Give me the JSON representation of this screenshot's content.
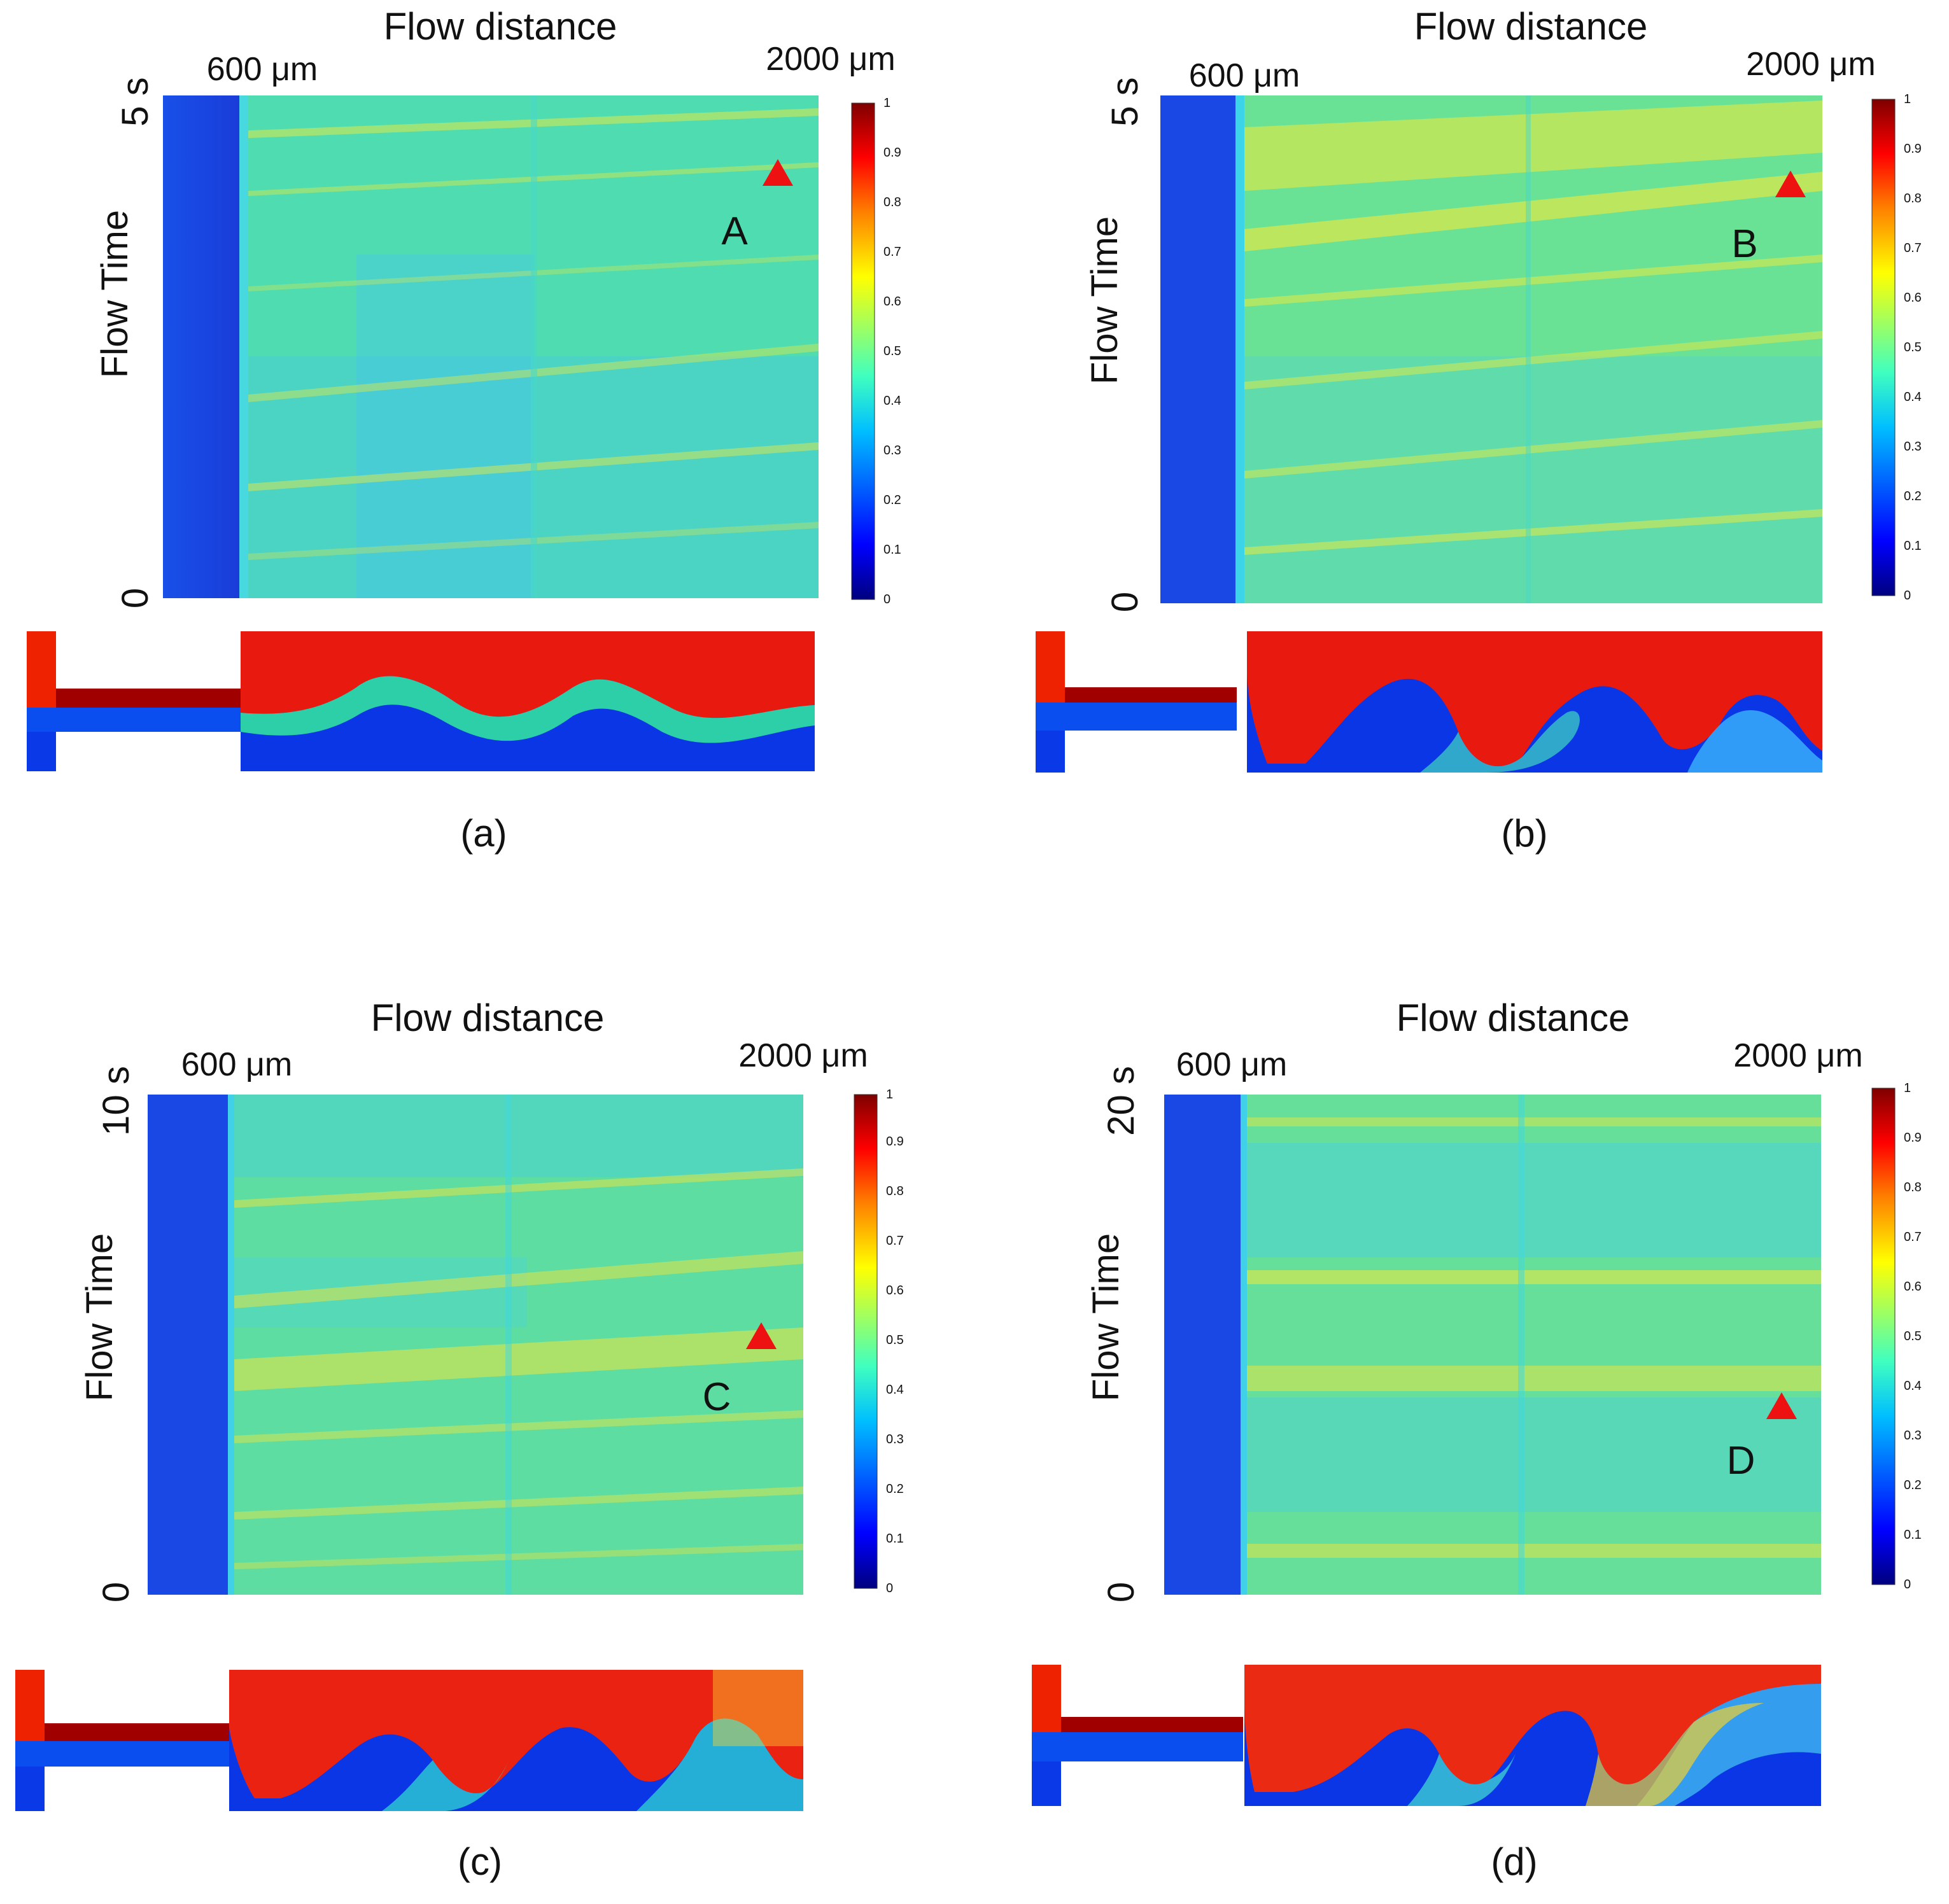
{
  "figure": {
    "colorbar": {
      "ticks": [
        "0",
        "0.1",
        "0.2",
        "0.3",
        "0.4",
        "0.5",
        "0.6",
        "0.7",
        "0.8",
        "0.9",
        "1"
      ],
      "colors": [
        "#00007f",
        "#0000ff",
        "#0080ff",
        "#00ffff",
        "#80ff80",
        "#ffff00",
        "#ff8000",
        "#ff0000",
        "#7f0000"
      ]
    },
    "panels": [
      {
        "id": "a",
        "title": "Flow distance",
        "pos_start": "600 μm",
        "pos_end": "2000 μm",
        "y_label": "Flow Time",
        "y_max": "5 s",
        "y_min": "0",
        "marker_label": "A",
        "caption": "(a)",
        "bg_color": "#4fdcb0",
        "stripe_color": "#dfe94a"
      },
      {
        "id": "b",
        "title": "Flow distance",
        "pos_start": "600 μm",
        "pos_end": "2000 μm",
        "y_label": "Flow Time",
        "y_max": "5 s",
        "y_min": "0",
        "marker_label": "B",
        "caption": "(b)",
        "bg_color": "#6ae296",
        "stripe_color": "#f2ea38"
      },
      {
        "id": "c",
        "title": "Flow distance",
        "pos_start": "600 μm",
        "pos_end": "2000 μm",
        "y_label": "Flow Time",
        "y_max": "10 s",
        "y_min": "0",
        "marker_label": "C",
        "caption": "(c)",
        "bg_color": "#5ddda2",
        "stripe_color": "#efe63c"
      },
      {
        "id": "d",
        "title": "Flow distance",
        "pos_start": "600 μm",
        "pos_end": "2000 μm",
        "y_label": "Flow Time",
        "y_max": "20 s",
        "y_min": "0",
        "marker_label": "D",
        "caption": "(d)",
        "bg_color": "#66df9a",
        "stripe_color": "#f0e83a"
      }
    ]
  }
}
